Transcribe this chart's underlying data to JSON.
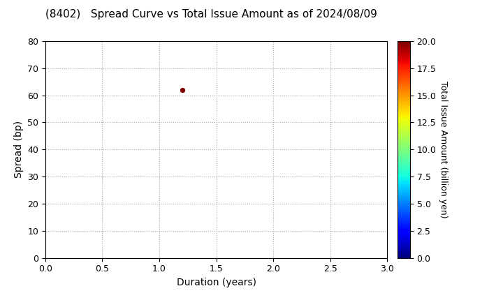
{
  "title": "(8402)   Spread Curve vs Total Issue Amount as of 2024/08/09",
  "xlabel": "Duration (years)",
  "ylabel": "Spread (bp)",
  "colorbar_label": "Total Issue Amount (billion yen)",
  "xlim": [
    0.0,
    3.0
  ],
  "ylim": [
    0,
    80
  ],
  "xticks": [
    0.0,
    0.5,
    1.0,
    1.5,
    2.0,
    2.5,
    3.0
  ],
  "yticks": [
    0,
    10,
    20,
    30,
    40,
    50,
    60,
    70,
    80
  ],
  "colorbar_ticks": [
    0.0,
    2.5,
    5.0,
    7.5,
    10.0,
    12.5,
    15.0,
    17.5,
    20.0
  ],
  "clim": [
    0.0,
    20.0
  ],
  "scatter_x": [
    1.2
  ],
  "scatter_y": [
    62
  ],
  "scatter_color": [
    20.0
  ],
  "scatter_size": 18,
  "grid_color": "#aaaaaa",
  "background_color": "#ffffff",
  "title_fontsize": 11,
  "axis_label_fontsize": 10,
  "colorbar_label_fontsize": 9,
  "tick_fontsize": 9
}
